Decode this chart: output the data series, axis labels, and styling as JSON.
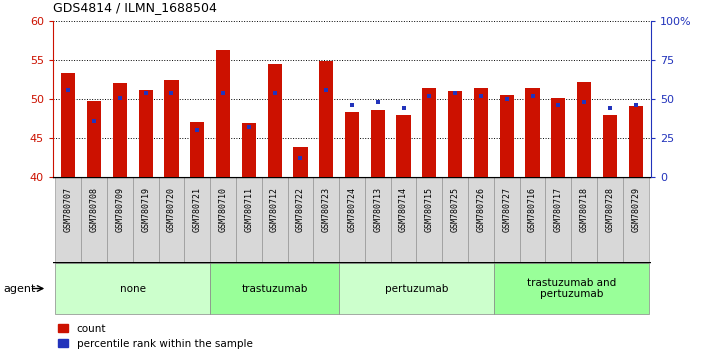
{
  "title": "GDS4814 / ILMN_1688504",
  "samples": [
    "GSM780707",
    "GSM780708",
    "GSM780709",
    "GSM780719",
    "GSM780720",
    "GSM780721",
    "GSM780710",
    "GSM780711",
    "GSM780712",
    "GSM780722",
    "GSM780723",
    "GSM780724",
    "GSM780713",
    "GSM780714",
    "GSM780715",
    "GSM780725",
    "GSM780726",
    "GSM780727",
    "GSM780716",
    "GSM780717",
    "GSM780718",
    "GSM780728",
    "GSM780729"
  ],
  "counts": [
    53.3,
    49.7,
    52.1,
    51.2,
    52.4,
    47.0,
    56.3,
    46.9,
    54.5,
    43.9,
    54.9,
    48.3,
    48.6,
    47.9,
    51.4,
    51.0,
    51.4,
    50.5,
    51.4,
    50.2,
    52.2,
    47.9,
    49.1
  ],
  "percentiles": [
    56,
    36,
    51,
    54,
    54,
    30,
    54,
    32,
    54,
    12,
    56,
    46,
    48,
    44,
    52,
    54,
    52,
    50,
    52,
    46,
    48,
    44,
    46
  ],
  "groups": [
    {
      "label": "none",
      "start": 0,
      "end": 6
    },
    {
      "label": "trastuzumab",
      "start": 6,
      "end": 11
    },
    {
      "label": "pertuzumab",
      "start": 11,
      "end": 17
    },
    {
      "label": "trastuzumab and\npertuzumab",
      "start": 17,
      "end": 23
    }
  ],
  "group_colors": [
    "#ccffcc",
    "#99ff99",
    "#ccffcc",
    "#99ff99"
  ],
  "ylim_left": [
    40,
    60
  ],
  "ylim_right": [
    0,
    100
  ],
  "yticks_left": [
    40,
    45,
    50,
    55,
    60
  ],
  "yticks_right": [
    0,
    25,
    50,
    75,
    100
  ],
  "bar_color": "#cc1100",
  "blue_color": "#2233bb",
  "bar_width": 0.55,
  "agent_label": "agent",
  "legend_count": "count",
  "legend_percentile": "percentile rank within the sample"
}
